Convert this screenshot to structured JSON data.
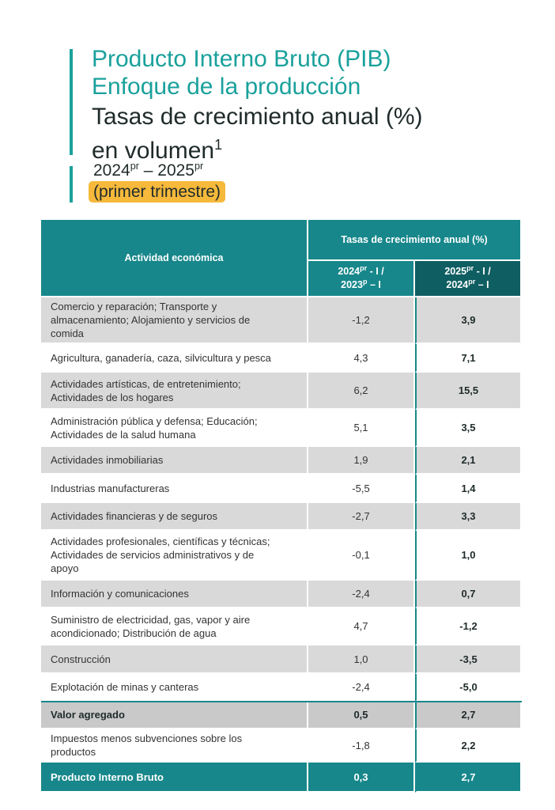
{
  "header": {
    "title_lines": [
      "Producto Interno Bruto (PIB)",
      "Enfoque de la producción",
      "Tasas de crecimiento anual (%)",
      {
        "text": "en volumen",
        "sup": "1"
      }
    ],
    "period": [
      {
        "text": "2024"
      },
      {
        "sup": "pr"
      },
      {
        "text": " – 2025"
      },
      {
        "sup": "pr"
      }
    ],
    "quarter": "(primer trimestre)"
  },
  "table": {
    "col_header": "Actividad económica",
    "group_header": "Tasas de crecimiento anual (%)",
    "sub_headers": [
      [
        [
          {
            "text": "2024"
          },
          {
            "sup": "pr"
          },
          {
            "text": " - I /"
          }
        ],
        [
          {
            "text": "2023"
          },
          {
            "sup": "p"
          },
          {
            "text": " – I"
          }
        ]
      ],
      [
        [
          {
            "text": "2025"
          },
          {
            "sup": "pr"
          },
          {
            "text": " - I /"
          }
        ],
        [
          {
            "text": "2024"
          },
          {
            "sup": "pr"
          },
          {
            "text": " – I"
          }
        ]
      ]
    ],
    "rows": [
      [
        "Comercio y reparación; Transporte y almacenamiento; Alojamiento y servicios de comida",
        "-1,2",
        "3,9"
      ],
      [
        "Agricultura, ganadería, caza, silvicultura y pesca",
        "4,3",
        "7,1"
      ],
      [
        "Actividades artísticas, de entretenimiento; Actividades de los hogares",
        "6,2",
        "15,5"
      ],
      [
        "Administración pública y defensa; Educación; Actividades de la salud humana",
        "5,1",
        "3,5"
      ],
      [
        "Actividades inmobiliarias",
        "1,9",
        "2,1"
      ],
      [
        "Industrias manufactureras",
        "-5,5",
        "1,4"
      ],
      [
        "Actividades financieras y de seguros",
        "-2,7",
        "3,3"
      ],
      [
        "Actividades profesionales, científicas y técnicas; Actividades de servicios administrativos y de apoyo",
        "-0,1",
        "1,0"
      ],
      [
        "Información y comunicaciones",
        "-2,4",
        "0,7"
      ],
      [
        "Suministro de electricidad, gas, vapor y aire acondicionado; Distribución de agua",
        "4,7",
        "-1,2"
      ],
      [
        "Construcción",
        "1,0",
        "-3,5"
      ],
      [
        "Explotación de minas y canteras",
        "-2,4",
        "-5,0"
      ]
    ],
    "value_added": [
      "Valor agregado",
      "0,5",
      "2,7"
    ],
    "taxes": [
      "Impuestos menos subvenciones sobre los productos",
      "-1,8",
      "2,2"
    ],
    "total": [
      "Producto Interno Bruto",
      "0,3",
      "2,7"
    ]
  }
}
